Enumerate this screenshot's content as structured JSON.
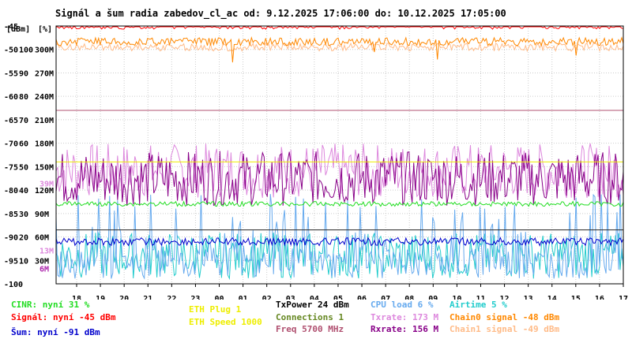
{
  "chart_data": {
    "type": "line",
    "title": "Signál a šum radia zabedov_cl_ac od: 9.12.2025 17:06:00 do: 10.12.2025 17:05:00",
    "x_unit": "[h]",
    "x_ticks": [
      "18",
      "19",
      "20",
      "21",
      "22",
      "23",
      "00",
      "01",
      "02",
      "03",
      "04",
      "05",
      "06",
      "07",
      "08",
      "09",
      "10",
      "11",
      "12",
      "13",
      "14",
      "15",
      "16",
      "17"
    ],
    "y_axis_dbm": {
      "unit": "[dBm]",
      "ticks": [
        "-45",
        "-50",
        "-55",
        "-60",
        "-65",
        "-70",
        "-75",
        "-80",
        "-85",
        "-90",
        "-95",
        "-100"
      ],
      "range": [
        -100,
        -45
      ]
    },
    "y_axis_percent": {
      "unit": "[%]",
      "ticks": [
        "100",
        "90",
        "80",
        "70",
        "60",
        "50",
        "40",
        "30",
        "20",
        "10",
        "0"
      ],
      "range": [
        0,
        100
      ]
    },
    "y_axis_rate": {
      "ticks": [
        "300M",
        "270M",
        "240M",
        "210M",
        "180M",
        "150M",
        "120M",
        "90M",
        "60M",
        "30M"
      ],
      "range": [
        0,
        300
      ]
    },
    "side_labels": [
      {
        "text": "39M",
        "color": "#dd88dd",
        "value": 39
      },
      {
        "text": "13M",
        "color": "#dd88dd",
        "value": 13
      },
      {
        "text": "6M",
        "color": "#aa22aa",
        "value": 6
      }
    ],
    "reference_lines": [
      {
        "name": "TxPower",
        "level_dbm": -88.5,
        "color": "#222222"
      },
      {
        "name": "Freq",
        "level_dbm": -63,
        "color": "#b05070"
      },
      {
        "name": "ETH Speed",
        "level_dbm": -74,
        "color": "#eeee00"
      }
    ],
    "series": [
      {
        "name": "CINR",
        "now": "31 %",
        "color": "#22dd22",
        "level": 31,
        "scale": "percent"
      },
      {
        "name": "Signál",
        "now": "-45 dBm",
        "color": "#ff0000",
        "level": -45,
        "scale": "dbm"
      },
      {
        "name": "Šum",
        "now": "-91 dBm",
        "color": "#0000cc",
        "level": -91,
        "scale": "dbm"
      },
      {
        "name": "CPU load",
        "now": "6 %",
        "color": "#66aaee",
        "level": 6,
        "scale": "percent"
      },
      {
        "name": "Airtime",
        "now": "5 %",
        "color": "#22cccc",
        "level": 5,
        "scale": "percent"
      },
      {
        "name": "Txrate",
        "now": "173 M",
        "color": "#dd88dd",
        "level": 173,
        "scale": "rate"
      },
      {
        "name": "Rxrate",
        "now": "156 M",
        "color": "#880088",
        "level": 156,
        "scale": "rate"
      },
      {
        "name": "Chain0 signal",
        "now": "-48 dBm",
        "color": "#ff8800",
        "level": -48,
        "scale": "dbm"
      },
      {
        "name": "Chain1 signal",
        "now": "-49 dBm",
        "color": "#ffbb88",
        "level": -49,
        "scale": "dbm"
      }
    ]
  },
  "legend": {
    "cinr": {
      "label": "CINR: nyní 31 %",
      "color": "#22dd22"
    },
    "signal": {
      "label": "Signál: nyní -45 dBm",
      "color": "#ff0000"
    },
    "noise": {
      "label": "Šum: nyní -91 dBm",
      "color": "#0000cc"
    },
    "eth_plug": {
      "label": "ETH Plug 1",
      "color": "#eeee00"
    },
    "eth_speed": {
      "label": "ETH Speed 1000",
      "color": "#eeee00"
    },
    "txpower": {
      "label": "TxPower 24 dBm",
      "color": "#000000"
    },
    "connections": {
      "label": "Connections 1",
      "color": "#668822"
    },
    "freq": {
      "label": "Freq 5700 MHz",
      "color": "#b05070"
    },
    "cpu": {
      "label": "CPU load 6 %",
      "color": "#66aaee"
    },
    "txrate": {
      "label": "Txrate: 173 M",
      "color": "#dd88dd"
    },
    "rxrate": {
      "label": "Rxrate: 156 M",
      "color": "#880088"
    },
    "airtime": {
      "label": "Airtime 5 %",
      "color": "#22cccc"
    },
    "chain0": {
      "label": "Chain0 signal -48 dBm",
      "color": "#ff8800"
    },
    "chain1": {
      "label": "Chain1 signal -49 dBm",
      "color": "#ffbb88"
    }
  }
}
